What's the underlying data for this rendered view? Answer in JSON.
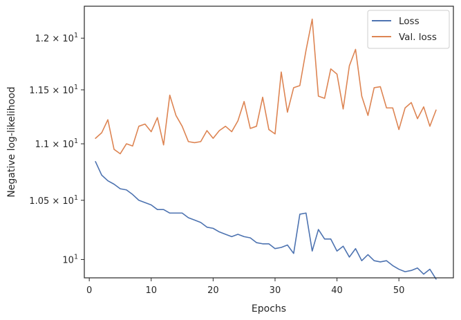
{
  "chart_data": {
    "type": "line",
    "xlabel": "Epochs",
    "ylabel": "Negative log-likelihood",
    "y_scale": "log",
    "xlim": [
      -0.8,
      58.8
    ],
    "ylim": [
      9.85,
      12.32
    ],
    "x_ticks": [
      {
        "value": 0,
        "label": "0"
      },
      {
        "value": 10,
        "label": "10"
      },
      {
        "value": 20,
        "label": "20"
      },
      {
        "value": 30,
        "label": "30"
      },
      {
        "value": 40,
        "label": "40"
      },
      {
        "value": 50,
        "label": "50"
      }
    ],
    "y_ticks": [
      {
        "value": 10.0,
        "base": "10",
        "exp": "1",
        "coef": ""
      },
      {
        "value": 10.5,
        "base": "10",
        "exp": "1",
        "coef": "1.05"
      },
      {
        "value": 11.0,
        "base": "10",
        "exp": "1",
        "coef": "1.1"
      },
      {
        "value": 11.5,
        "base": "10",
        "exp": "1",
        "coef": "1.15"
      },
      {
        "value": 12.0,
        "base": "10",
        "exp": "1",
        "coef": "1.2"
      }
    ],
    "grid": false,
    "legend_position": "top-right",
    "x": [
      1,
      2,
      3,
      4,
      5,
      6,
      7,
      8,
      9,
      10,
      11,
      12,
      13,
      14,
      15,
      16,
      17,
      18,
      19,
      20,
      21,
      22,
      23,
      24,
      25,
      26,
      27,
      28,
      29,
      30,
      31,
      32,
      33,
      34,
      35,
      36,
      37,
      38,
      39,
      40,
      41,
      42,
      43,
      44,
      45,
      46,
      47,
      48,
      49,
      50,
      51,
      52,
      53,
      54,
      55,
      56
    ],
    "series": [
      {
        "name": "Loss",
        "color": "#4c72b0",
        "values": [
          10.84,
          10.72,
          10.67,
          10.64,
          10.6,
          10.59,
          10.55,
          10.5,
          10.48,
          10.46,
          10.42,
          10.42,
          10.39,
          10.39,
          10.39,
          10.35,
          10.33,
          10.31,
          10.27,
          10.26,
          10.23,
          10.21,
          10.19,
          10.21,
          10.19,
          10.18,
          10.14,
          10.13,
          10.13,
          10.09,
          10.1,
          10.12,
          10.05,
          10.38,
          10.39,
          10.07,
          10.25,
          10.17,
          10.17,
          10.07,
          10.11,
          10.02,
          10.09,
          9.99,
          10.04,
          9.99,
          9.98,
          9.99,
          9.95,
          9.92,
          9.9,
          9.91,
          9.93,
          9.88,
          9.92,
          9.84
        ]
      },
      {
        "name": "Val. loss",
        "color": "#dd8452",
        "values": [
          11.05,
          11.1,
          11.22,
          10.95,
          10.91,
          11.0,
          10.98,
          11.16,
          11.18,
          11.11,
          11.24,
          10.99,
          11.45,
          11.26,
          11.16,
          11.02,
          11.01,
          11.02,
          11.12,
          11.05,
          11.12,
          11.16,
          11.11,
          11.21,
          11.39,
          11.14,
          11.16,
          11.43,
          11.13,
          11.09,
          11.67,
          11.29,
          11.52,
          11.54,
          11.88,
          12.19,
          11.44,
          11.42,
          11.7,
          11.65,
          11.32,
          11.73,
          11.89,
          11.44,
          11.26,
          11.52,
          11.53,
          11.33,
          11.33,
          11.13,
          11.33,
          11.38,
          11.23,
          11.34,
          11.16,
          11.31
        ]
      }
    ]
  }
}
